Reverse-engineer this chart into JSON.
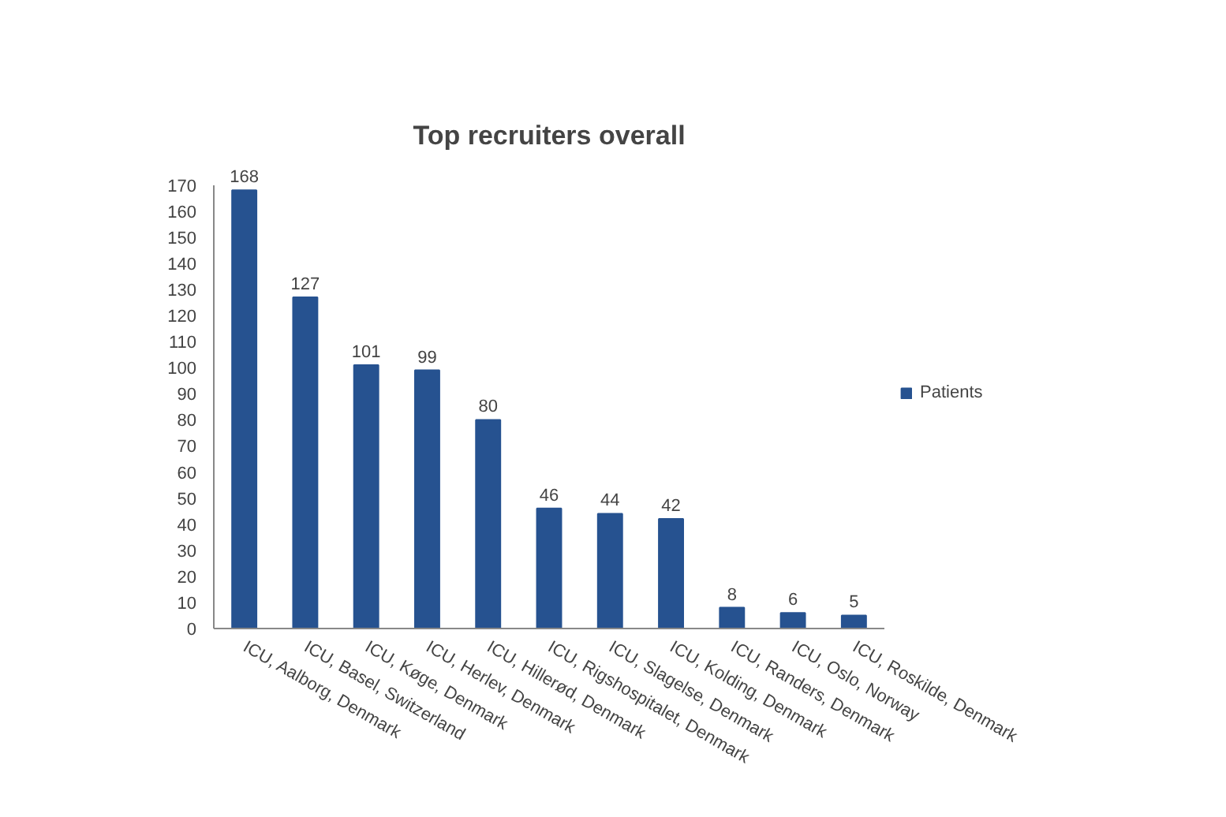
{
  "chart_data": {
    "type": "bar",
    "title": "Top recruiters overall",
    "categories": [
      "ICU, Aalborg, Denmark",
      "ICU, Basel, Switzerland",
      "ICU, Køge, Denmark",
      "ICU, Herlev, Denmark",
      "ICU, Hillerød, Denmark",
      "ICU, Rigshospitalet, Denmark",
      "ICU, Slagelse, Denmark",
      "ICU, Kolding, Denmark",
      "ICU, Randers, Denmark",
      "ICU, Oslo, Norway",
      "ICU, Roskilde, Denmark"
    ],
    "series": [
      {
        "name": "Patients",
        "color": "#265290",
        "values": [
          168,
          127,
          101,
          99,
          80,
          46,
          44,
          42,
          8,
          6,
          5
        ]
      }
    ],
    "ylim": [
      0,
      170
    ],
    "yticks": [
      0,
      10,
      20,
      30,
      40,
      50,
      60,
      70,
      80,
      90,
      100,
      110,
      120,
      130,
      140,
      150,
      160,
      170
    ],
    "grid": false,
    "legend": "right",
    "data_labels": true
  }
}
